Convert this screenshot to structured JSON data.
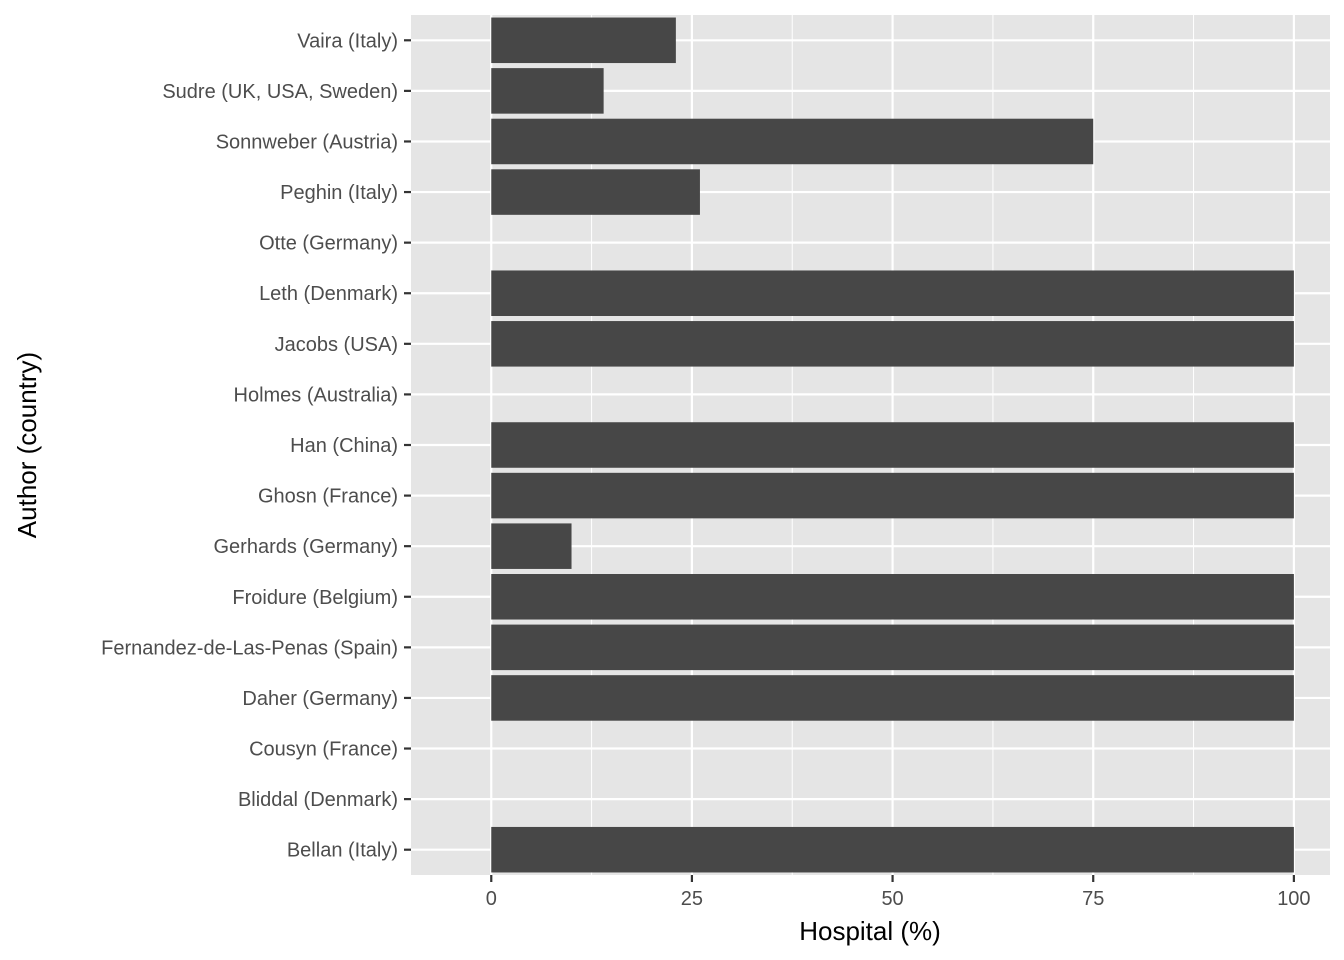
{
  "chart_data": {
    "type": "bar",
    "orientation": "horizontal",
    "categories": [
      "Vaira (Italy)",
      "Sudre  (UK, USA, Sweden)",
      "Sonnweber (Austria)",
      "Peghin (Italy)",
      "Otte (Germany)",
      "Leth (Denmark)",
      "Jacobs (USA)",
      "Holmes (Australia)",
      "Han (China)",
      "Ghosn (France)",
      "Gerhards (Germany)",
      "Froidure (Belgium)",
      "Fernandez-de-Las-Penas (Spain)",
      "Daher (Germany)",
      "Cousyn (France)",
      "Bliddal (Denmark)",
      "Bellan (Italy)"
    ],
    "values": [
      23,
      14,
      75,
      26,
      0,
      100,
      100,
      0,
      100,
      100,
      10,
      100,
      100,
      100,
      0,
      0,
      100
    ],
    "xlabel": "Hospital (%)",
    "ylabel": "Author (country)",
    "xlim": [
      -10,
      104.5
    ],
    "xticks": [
      0,
      25,
      50,
      75,
      100
    ],
    "xtick_labels": [
      "0",
      "25",
      "50",
      "75",
      "100"
    ],
    "grid": true,
    "colors": {
      "bar": "#474747",
      "panel": "#e5e5e5",
      "grid": "#ffffff",
      "tick_text": "#4d4d4d",
      "tick_mark": "#333333"
    }
  }
}
